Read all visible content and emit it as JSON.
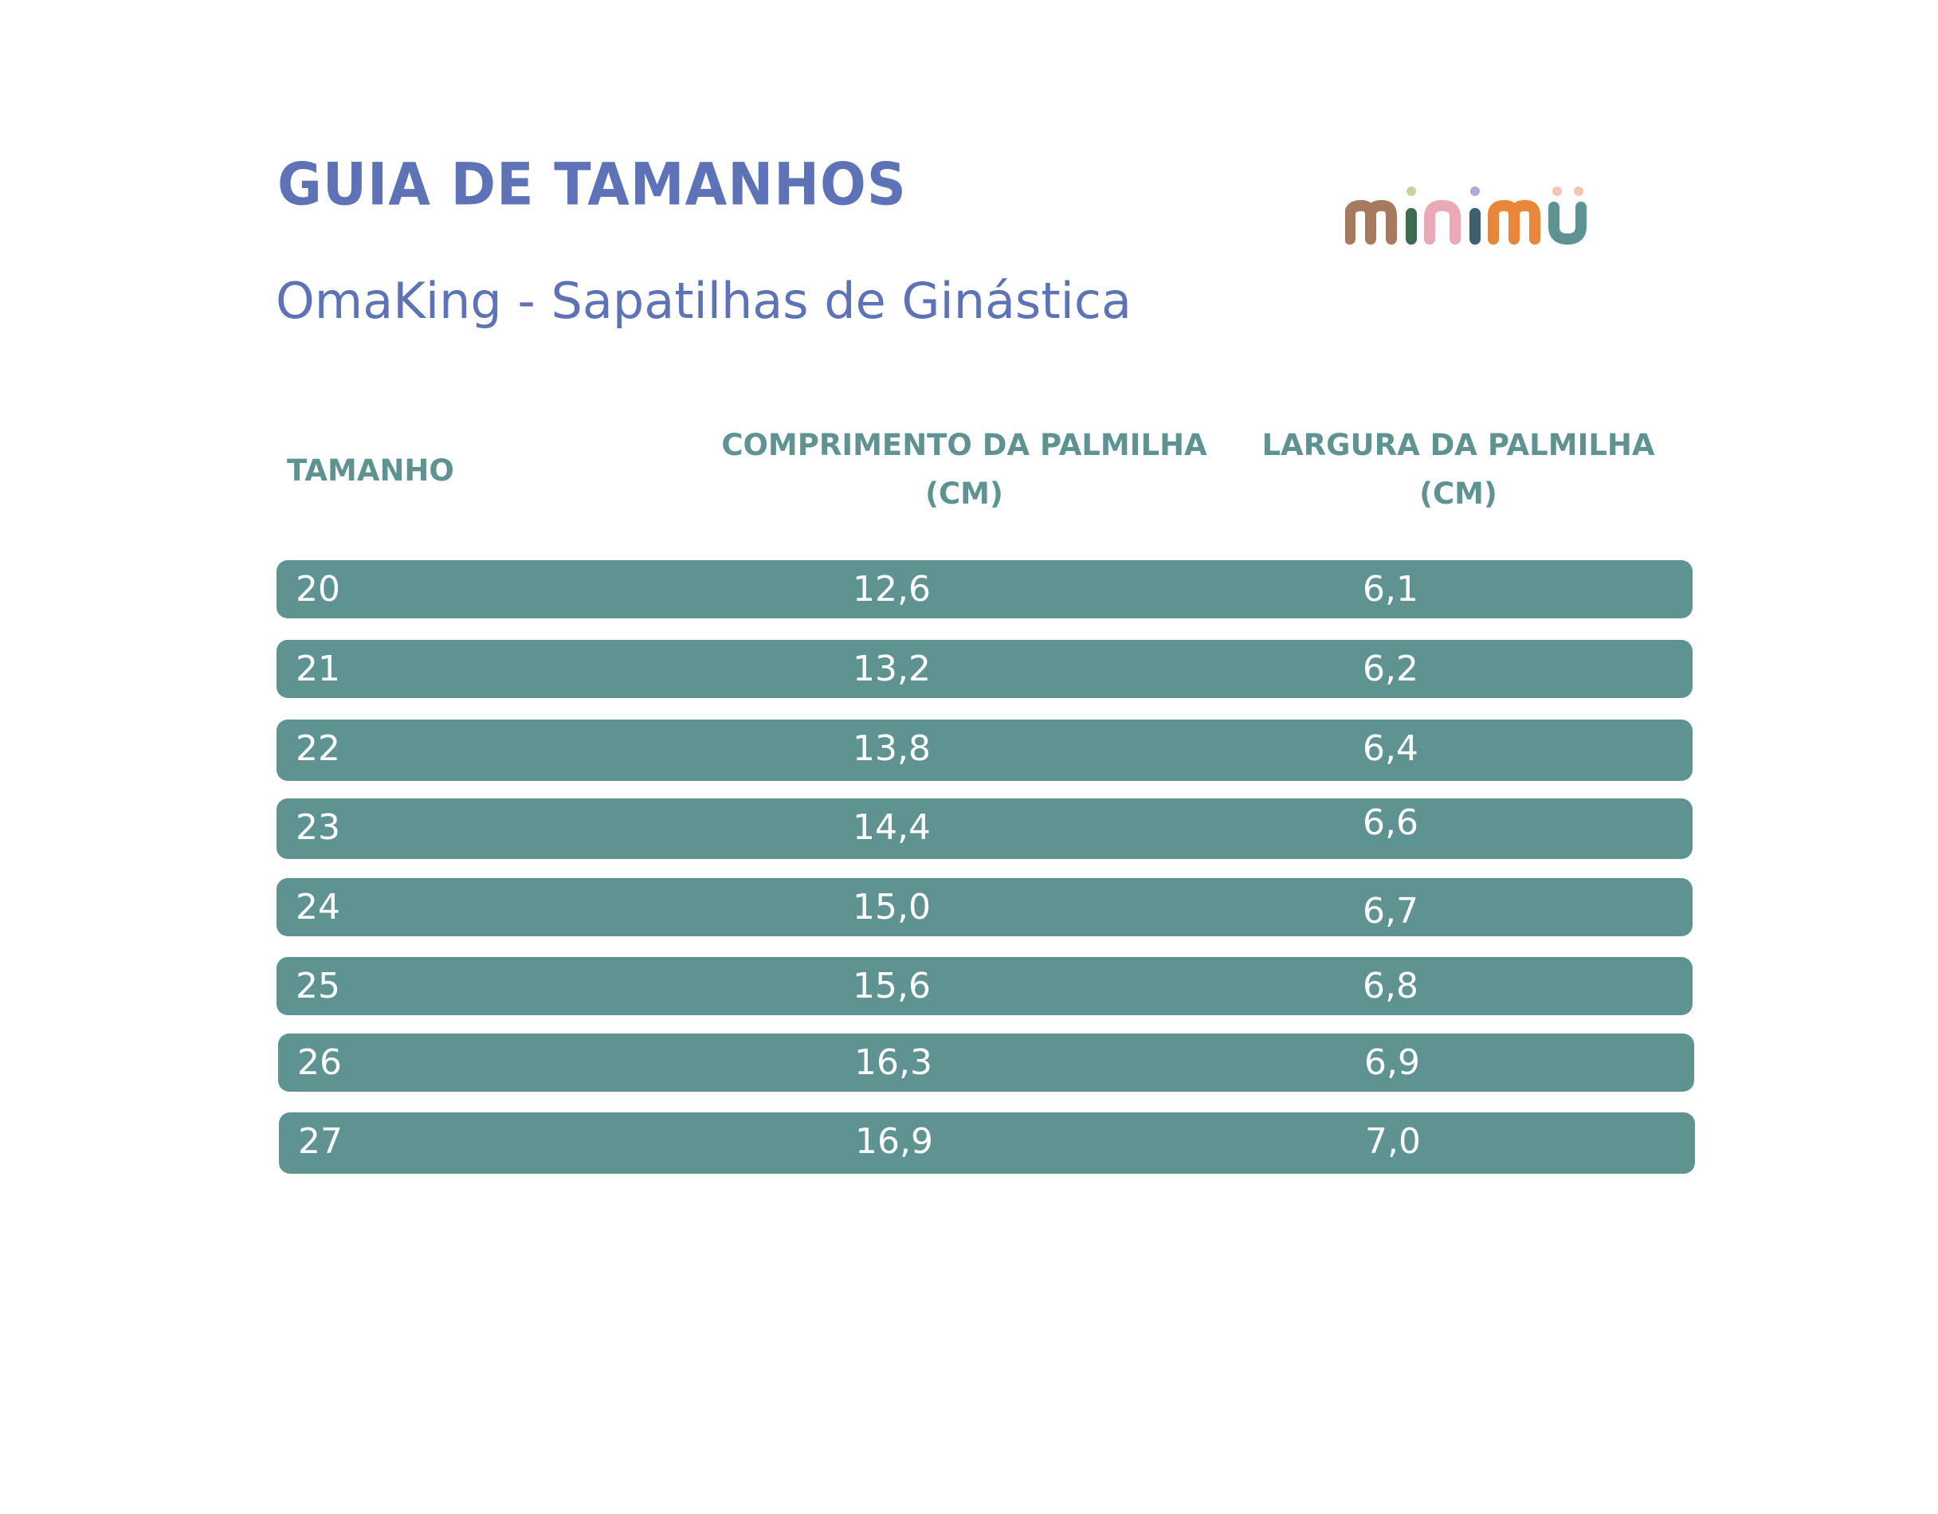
{
  "header": {
    "title": "GUIA DE TAMANHOS",
    "subtitle": "OmaKing - Sapatilhas de Ginástica",
    "logo_text": "minimü"
  },
  "table": {
    "columns": {
      "size": "TAMANHO",
      "length_line1": "COMPRIMENTO DA PALMILHA",
      "length_line2": "(CM)",
      "width_line1": "LARGURA DA PALMILHA",
      "width_line2": "(CM)"
    },
    "rows": [
      {
        "size": "20",
        "length": "12,6",
        "width": "6,1"
      },
      {
        "size": "21",
        "length": "13,2",
        "width": "6,2"
      },
      {
        "size": "22",
        "length": "13,8",
        "width": "6,4"
      },
      {
        "size": "23",
        "length": "14,4",
        "width": "6,6"
      },
      {
        "size": "24",
        "length": "15,0",
        "width": "6,7"
      },
      {
        "size": "25",
        "length": "15,6",
        "width": "6,8"
      },
      {
        "size": "26",
        "length": "16,3",
        "width": "6,9"
      },
      {
        "size": "27",
        "length": "16,9",
        "width": "7,0"
      }
    ]
  },
  "colors": {
    "title_blue": "#5E73B7",
    "row_teal": "#5F9391",
    "header_teal": "#5F9391",
    "row_text": "#FFFFFF"
  }
}
